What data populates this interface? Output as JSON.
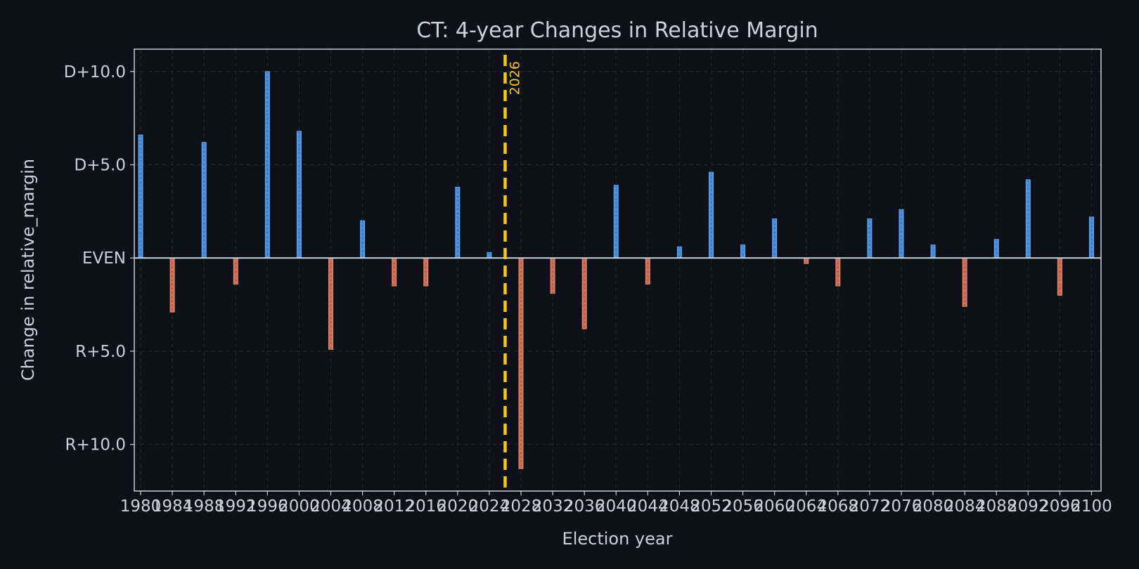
{
  "chart_data": {
    "type": "bar",
    "title": "CT: 4-year Changes in Relative Margin",
    "xlabel": "Election year",
    "ylabel": "Change in relative_margin",
    "x": [
      1980,
      1984,
      1988,
      1992,
      1996,
      2000,
      2004,
      2008,
      2012,
      2016,
      2020,
      2024,
      2028,
      2032,
      2036,
      2040,
      2044,
      2048,
      2052,
      2056,
      2060,
      2064,
      2068,
      2072,
      2076,
      2080,
      2084,
      2088,
      2092,
      2096,
      2100
    ],
    "values": [
      6.6,
      -2.9,
      6.2,
      -1.4,
      10.0,
      6.8,
      -4.9,
      2.0,
      -1.5,
      -1.5,
      3.8,
      0.3,
      -11.3,
      -1.9,
      -3.8,
      3.9,
      -1.4,
      0.6,
      4.6,
      0.7,
      2.1,
      -0.3,
      -1.5,
      2.1,
      2.6,
      0.7,
      -2.6,
      1.0,
      4.2,
      -2.0,
      2.2
    ],
    "ylim": [
      -12.5,
      11.2
    ],
    "xlim": [
      1979.2,
      2101.2
    ],
    "yticks": [
      {
        "value": 10,
        "label": "D+10.0"
      },
      {
        "value": 5,
        "label": "D+5.0"
      },
      {
        "value": 0,
        "label": "EVEN"
      },
      {
        "value": -5,
        "label": "R+5.0"
      },
      {
        "value": -10,
        "label": "R+10.0"
      }
    ],
    "xtick_labels": [
      "1980",
      "1984",
      "1988",
      "1992",
      "1996",
      "2000",
      "2004",
      "2008",
      "2012",
      "2016",
      "2020",
      "2024",
      "2028",
      "2032",
      "2036",
      "2040",
      "2044",
      "2048",
      "2052",
      "2056",
      "2060",
      "2064",
      "2068",
      "2072",
      "2076",
      "2080",
      "2084",
      "2088",
      "2092",
      "2096",
      "2100"
    ],
    "marker": {
      "x": 2026,
      "label": "2026",
      "color": "#f5c518"
    },
    "colors": {
      "positive": "#58a6ff",
      "negative": "#f0826a",
      "background": "#0d1117",
      "text": "#c9d1d9"
    },
    "grid": true
  }
}
